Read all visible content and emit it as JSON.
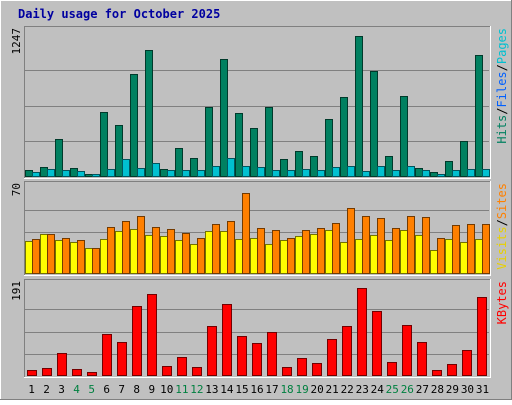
{
  "chart_data": {
    "type": "bar",
    "title": "Daily usage for October 2025",
    "colors": {
      "background": "#c0c0c0",
      "pages": "#00c0d0",
      "files": "#0060ff",
      "hits": "#008060",
      "visits": "#ffff00",
      "sites": "#ff8000",
      "kbytes": "#ff0000",
      "weekday_label": "#000000",
      "weekend_label": "#008040"
    },
    "categories": [
      "1",
      "2",
      "3",
      "4",
      "5",
      "6",
      "7",
      "8",
      "9",
      "10",
      "11",
      "12",
      "13",
      "14",
      "15",
      "16",
      "17",
      "18",
      "19",
      "20",
      "21",
      "22",
      "23",
      "24",
      "25",
      "26",
      "27",
      "28",
      "29",
      "30",
      "31"
    ],
    "weekend_days": [
      "4",
      "5",
      "11",
      "12",
      "18",
      "19",
      "25",
      "26"
    ],
    "panels": [
      {
        "id": "hits-files-pages",
        "max_label": "1247",
        "ylim": [
          0,
          1247
        ],
        "legend": [
          {
            "text": "Hits",
            "color": "#008060"
          },
          {
            "text": "/",
            "color": "#000000"
          },
          {
            "text": "Files",
            "color": "#0060ff"
          },
          {
            "text": "/",
            "color": "#000000"
          },
          {
            "text": "Pages",
            "color": "#00c0d0"
          }
        ],
        "series": [
          {
            "name": "Hits",
            "color": "#008060",
            "values": [
              60,
              90,
              330,
              80,
              30,
              570,
              450,
              900,
              1110,
              70,
              250,
              170,
              610,
              1030,
              560,
              430,
              610,
              160,
              230,
              180,
              510,
              700,
              1230,
              920,
              180,
              710,
              80,
              40,
              140,
              310,
              1060
            ]
          },
          {
            "name": "Pages",
            "color": "#00c0d0",
            "values": [
              40,
              70,
              60,
              50,
              30,
              70,
              160,
              80,
              120,
              60,
              60,
              60,
              100,
              170,
              100,
              90,
              60,
              60,
              70,
              60,
              90,
              100,
              50,
              100,
              60,
              100,
              60,
              30,
              60,
              70,
              70
            ]
          }
        ]
      },
      {
        "id": "visits-sites",
        "max_label": "70",
        "ylim": [
          0,
          70
        ],
        "legend": [
          {
            "text": "Visits",
            "color": "#e8d000"
          },
          {
            "text": "/",
            "color": "#000000"
          },
          {
            "text": "Sites",
            "color": "#ff8000"
          }
        ],
        "series": [
          {
            "name": "Visits",
            "color": "#ffff00",
            "values": [
              27,
              33,
              28,
              26,
              21,
              29,
              35,
              37,
              32,
              31,
              28,
              25,
              35,
              35,
              29,
              30,
              25,
              28,
              31,
              33,
              36,
              26,
              29,
              32,
              28,
              36,
              32,
              20,
              29,
              26,
              29
            ]
          },
          {
            "name": "Sites",
            "color": "#ff8000",
            "values": [
              29,
              33,
              30,
              28,
              21,
              39,
              44,
              48,
              39,
              37,
              34,
              30,
              41,
              44,
              67,
              38,
              36,
              30,
              36,
              38,
              42,
              54,
              48,
              46,
              38,
              48,
              47,
              30,
              40,
              41,
              41
            ]
          }
        ]
      },
      {
        "id": "kbytes",
        "max_label": "191",
        "ylim": [
          0,
          191
        ],
        "legend": [
          {
            "text": "KBytes",
            "color": "#ff0000"
          }
        ],
        "series": [
          {
            "name": "KBytes",
            "color": "#ff0000",
            "values": [
              12,
              18,
              50,
              15,
              8,
              90,
              72,
              150,
              175,
              22,
              40,
              20,
              108,
              155,
              85,
              70,
              95,
              20,
              38,
              28,
              80,
              108,
              188,
              140,
              30,
              110,
              72,
              12,
              25,
              55,
              170
            ]
          }
        ]
      }
    ]
  }
}
